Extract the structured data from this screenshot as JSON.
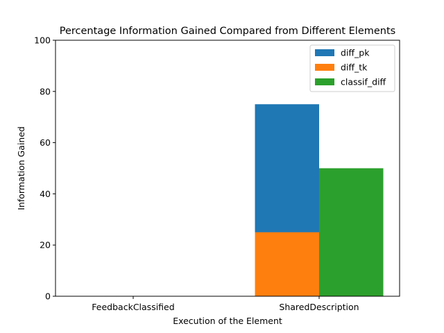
{
  "chart_data": {
    "type": "bar",
    "title": "Percentage Information Gained Compared from Different Elements",
    "xlabel": "Execution of the Element",
    "ylabel": "Information Gained",
    "categories": [
      "FeedbackClassified",
      "SharedDescription"
    ],
    "ylim": [
      0,
      100
    ],
    "yticks": [
      "0",
      "20",
      "40",
      "60",
      "80",
      "100"
    ],
    "series": [
      {
        "name": "diff_pk",
        "values": [
          0,
          75
        ],
        "color": "#1f77b4"
      },
      {
        "name": "diff_tk",
        "values": [
          0,
          25
        ],
        "color": "#ff7f0e"
      },
      {
        "name": "classif_diff",
        "values": [
          0,
          50
        ],
        "color": "#2ca02c"
      }
    ],
    "grid": false,
    "legend_position": "top-right"
  }
}
